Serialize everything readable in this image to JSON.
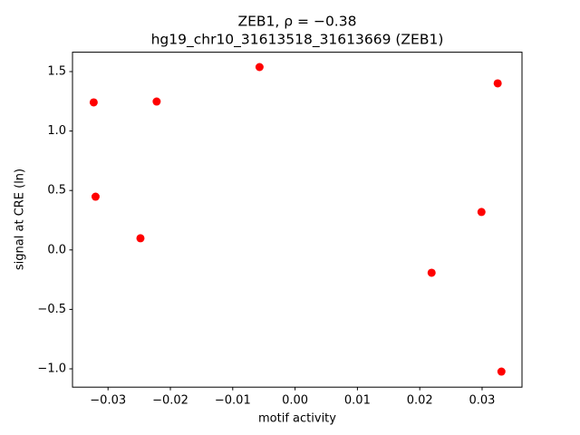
{
  "chart_data": {
    "type": "scatter",
    "title": "ZEB1, ρ = −0.38",
    "subtitle": "hg19_chr10_31613518_31613669 (ZEB1)",
    "x_label": "motif activity",
    "y_label": "signal at CRE (ln)",
    "color": "#ff0000",
    "x": [
      -0.0323,
      -0.032,
      -0.0248,
      -0.0222,
      -0.0057,
      0.0219,
      0.0299,
      0.0325,
      0.0331
    ],
    "values": [
      1.241,
      0.448,
      0.098,
      1.248,
      1.538,
      -0.192,
      0.319,
      1.401,
      -1.023
    ],
    "xlim": [
      -0.0357,
      0.0364
    ],
    "ylim": [
      -1.154,
      1.663
    ],
    "xticks": [
      {
        "value": -0.03,
        "label": "−0.03"
      },
      {
        "value": -0.02,
        "label": "−0.02"
      },
      {
        "value": -0.01,
        "label": "−0.01"
      },
      {
        "value": 0,
        "label": "0.00"
      },
      {
        "value": 0.01,
        "label": "0.01"
      },
      {
        "value": 0.02,
        "label": "0.02"
      },
      {
        "value": 0.03,
        "label": "0.03"
      }
    ],
    "yticks": [
      {
        "value": -1,
        "label": "−1.0"
      },
      {
        "value": -0.5,
        "label": "−0.5"
      },
      {
        "value": 0,
        "label": "0.0"
      },
      0.5,
      {
        "value": 1,
        "label": "1.0"
      },
      1.5
    ],
    "grid": false
  }
}
